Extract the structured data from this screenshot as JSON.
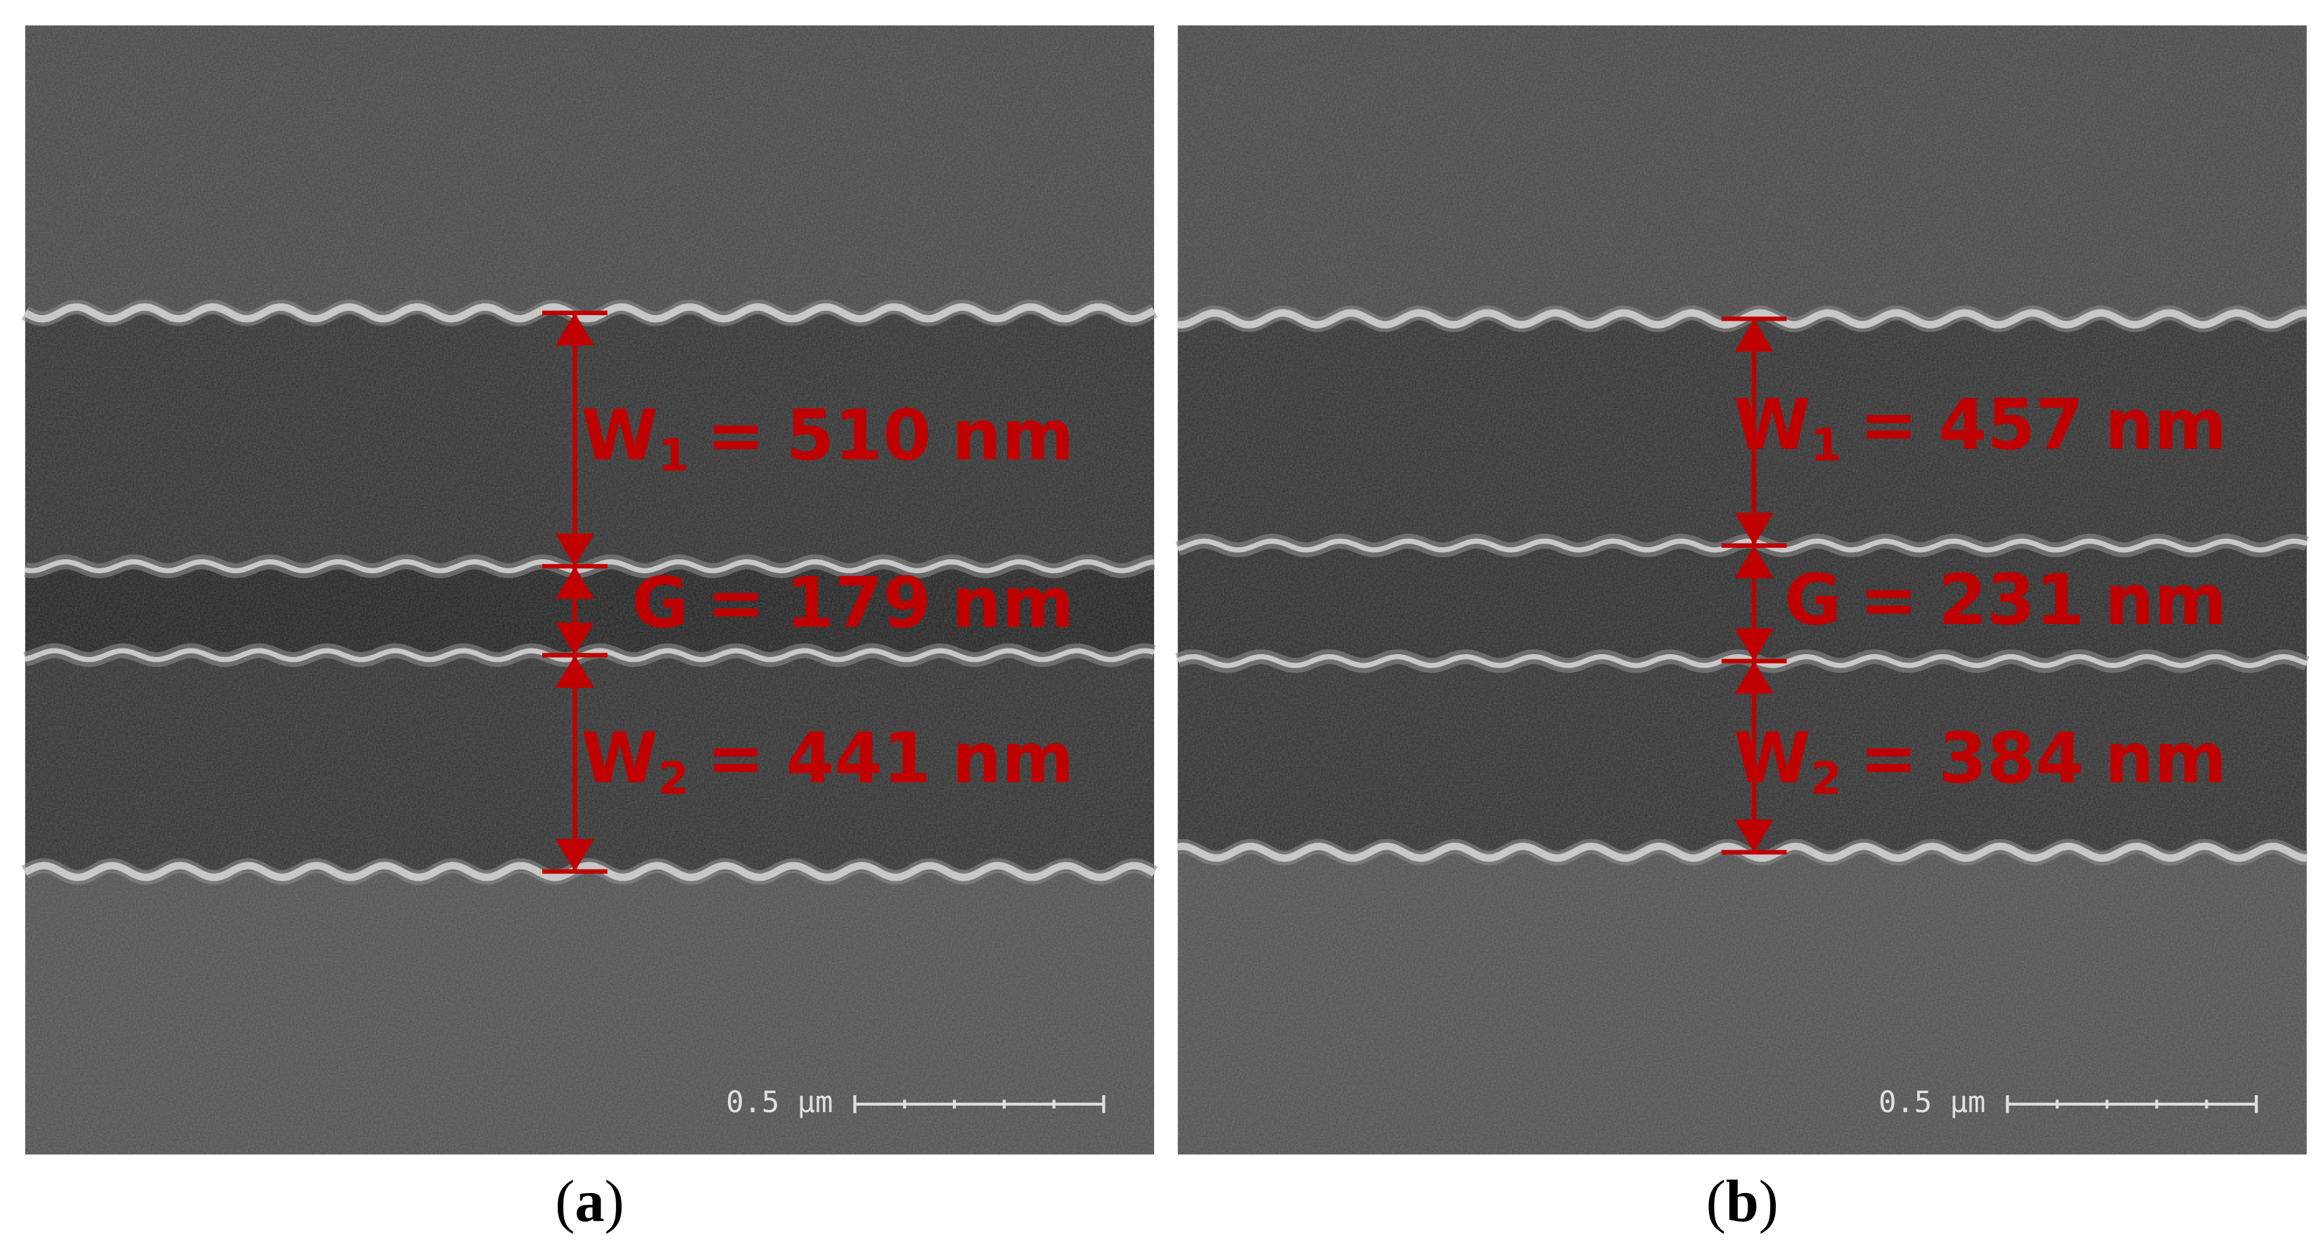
{
  "panels": [
    {
      "caption": [
        "(",
        "a",
        ")"
      ],
      "scale_bar": "0.5 μm",
      "measurements": [
        {
          "symbol": "W",
          "subscript": "1",
          "relation": "=",
          "value": 510,
          "unit": "nm"
        },
        {
          "symbol": "G",
          "relation": "=",
          "value": 179,
          "unit": "nm"
        },
        {
          "symbol": "W",
          "subscript": "2",
          "relation": "=",
          "value": 441,
          "unit": "nm"
        }
      ]
    },
    {
      "caption": [
        "(",
        "b",
        ")"
      ],
      "scale_bar": "0.5 μm",
      "measurements": [
        {
          "symbol": "W",
          "subscript": "1",
          "relation": "=",
          "value": 457,
          "unit": "nm"
        },
        {
          "symbol": "G",
          "relation": "=",
          "value": 231,
          "unit": "nm"
        },
        {
          "symbol": "W",
          "subscript": "2",
          "relation": "=",
          "value": 384,
          "unit": "nm"
        }
      ]
    }
  ]
}
